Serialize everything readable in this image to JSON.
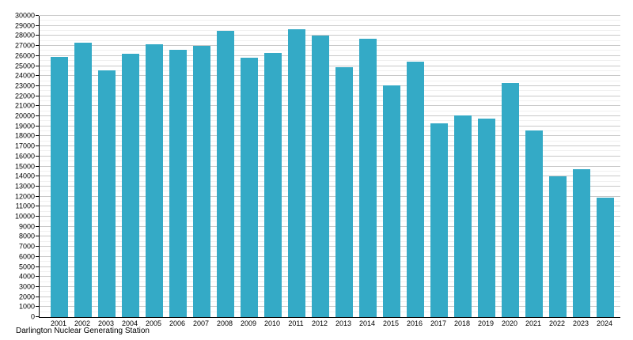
{
  "chart_data": {
    "type": "bar",
    "title": "",
    "caption": "Darlington Nuclear Generating Station",
    "xlabel": "",
    "ylabel": "",
    "categories": [
      "2001",
      "2002",
      "2003",
      "2004",
      "2005",
      "2006",
      "2007",
      "2008",
      "2009",
      "2010",
      "2011",
      "2012",
      "2013",
      "2014",
      "2015",
      "2016",
      "2017",
      "2018",
      "2019",
      "2020",
      "2021",
      "2022",
      "2023",
      "2024"
    ],
    "values": [
      25900,
      27300,
      24600,
      26250,
      27200,
      26650,
      27000,
      28500,
      25800,
      26300,
      28650,
      28050,
      24850,
      27700,
      23100,
      25450,
      19300,
      20050,
      19750,
      23300,
      18550,
      14000,
      14750,
      11900
    ],
    "ylim": [
      0,
      30000
    ],
    "y_major_step": 1000,
    "y_minor_step": 500,
    "grid": true,
    "legend": false,
    "bar_color": "#34aac6",
    "major_grid_color": "#c8c8c8",
    "minor_grid_color": "#f0f0f0",
    "axis_color": "#000000"
  }
}
